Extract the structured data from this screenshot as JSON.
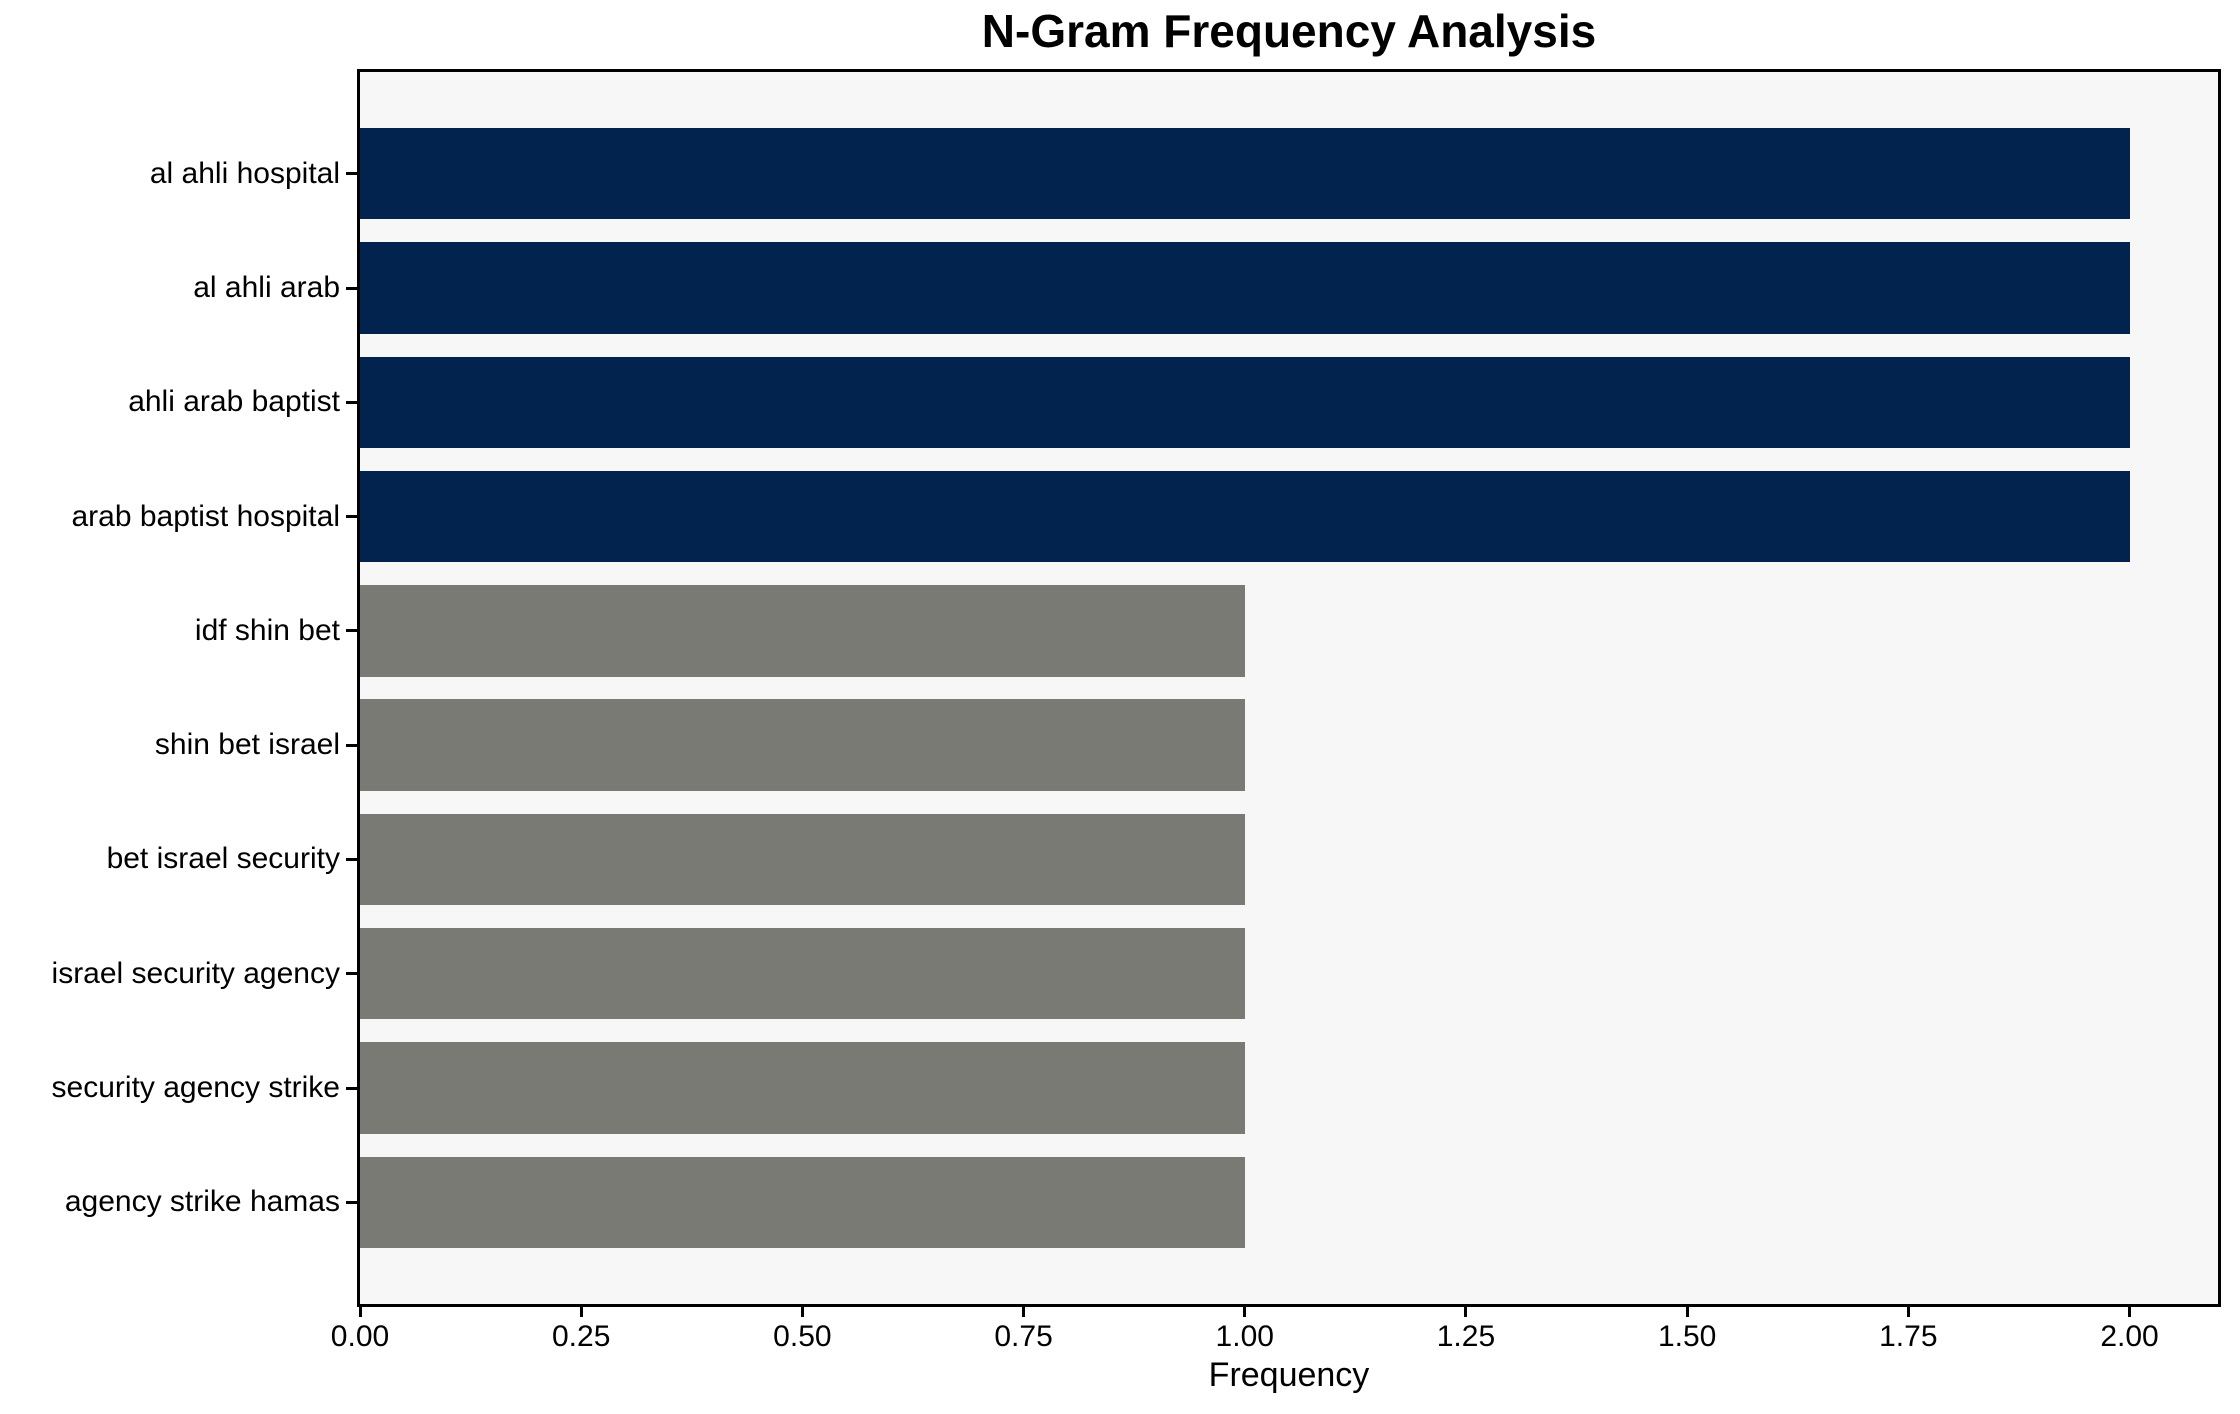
{
  "chart_data": {
    "type": "bar",
    "orientation": "horizontal",
    "title": "N-Gram Frequency Analysis",
    "xlabel": "Frequency",
    "ylabel": "",
    "categories": [
      "al ahli hospital",
      "al ahli arab",
      "ahli arab baptist",
      "arab baptist hospital",
      "idf shin bet",
      "shin bet israel",
      "bet israel security",
      "israel security agency",
      "security agency strike",
      "agency strike hamas"
    ],
    "values": [
      2,
      2,
      2,
      2,
      1,
      1,
      1,
      1,
      1,
      1
    ],
    "bar_colors": [
      "#02234d",
      "#02234d",
      "#02234d",
      "#02234d",
      "#7a7a75",
      "#7a7a75",
      "#7a7a75",
      "#7a7a75",
      "#7a7a75",
      "#7a7a75"
    ],
    "xlim": [
      0,
      2.1
    ],
    "xticks": [
      0,
      0.25,
      0.5,
      0.75,
      1.0,
      1.25,
      1.5,
      1.75,
      2.0
    ],
    "xtick_labels": [
      "0.00",
      "0.25",
      "0.50",
      "0.75",
      "1.00",
      "1.25",
      "1.50",
      "1.75",
      "2.00"
    ],
    "bar_rel_height": 0.8,
    "grid": false,
    "legend": null,
    "plot_background": "#f7f7f7",
    "figure_background": "#ffffff",
    "spine_color": "#000000",
    "colors": {
      "frequency_2": "#02234d",
      "frequency_1": "#7a7a75"
    }
  }
}
